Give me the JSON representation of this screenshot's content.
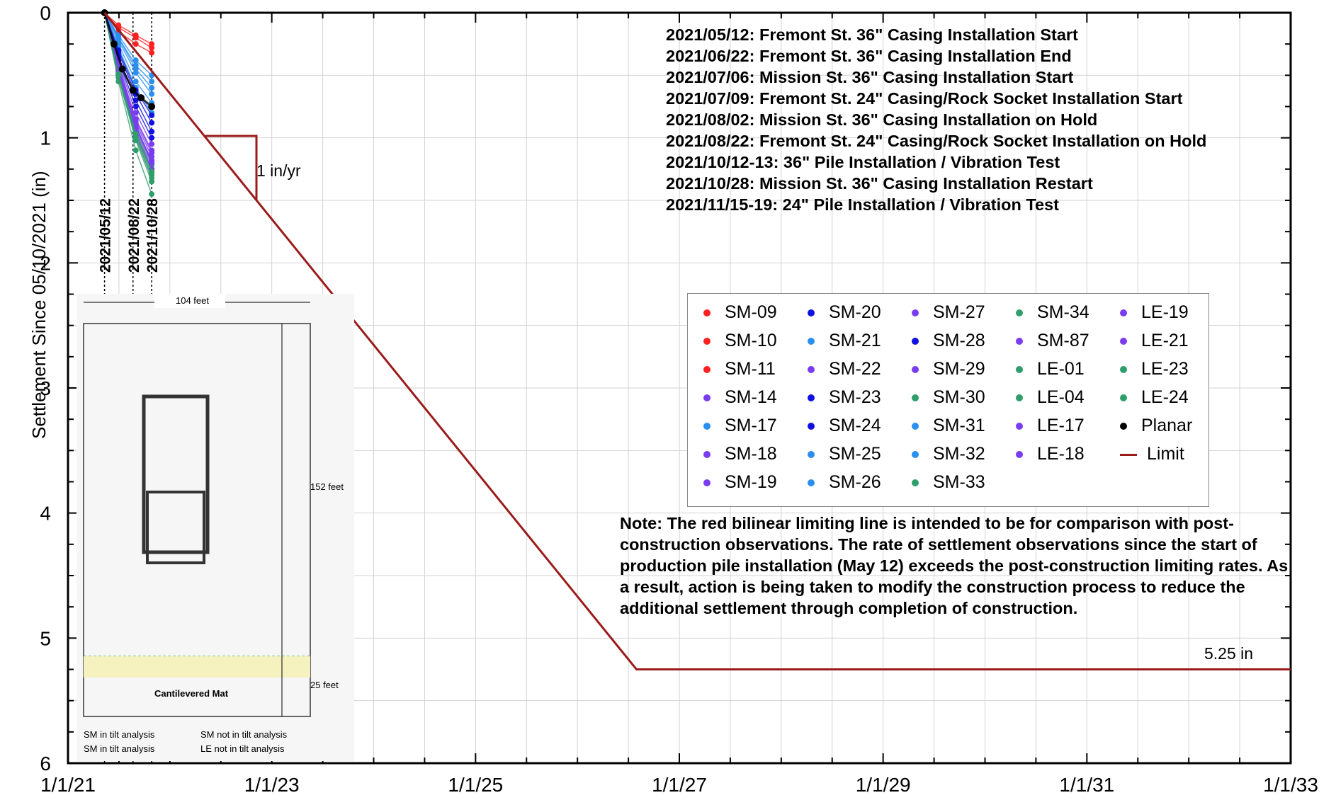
{
  "chart_data": {
    "type": "scatter",
    "ylabel": "Settlement Since 05/10/2021 (in)",
    "xlabel": "",
    "x_ticks": [
      "1/1/21",
      "1/1/23",
      "1/1/25",
      "1/1/27",
      "1/1/29",
      "1/1/31",
      "1/1/33"
    ],
    "y_ticks": [
      "0",
      "1",
      "2",
      "3",
      "4",
      "5",
      "6"
    ],
    "ylim": [
      6,
      0
    ],
    "xlim": [
      "1/1/21",
      "1/1/33"
    ],
    "grid": true,
    "vertical_markers": [
      "2021/05/12",
      "2021/08/22",
      "2021/10/28"
    ],
    "series": [
      {
        "name": "SM-09",
        "color": "#ff2020",
        "marker": "dot",
        "x": [
          "2021-05-12",
          "2021-07-01",
          "2021-09-01",
          "2021-10-28"
        ],
        "values": [
          0.0,
          0.15,
          0.25,
          0.32
        ]
      },
      {
        "name": "SM-10",
        "color": "#ff2020",
        "marker": "dot",
        "x": [
          "2021-05-12",
          "2021-07-01",
          "2021-09-01",
          "2021-10-28"
        ],
        "values": [
          0.0,
          0.12,
          0.2,
          0.28
        ]
      },
      {
        "name": "SM-11",
        "color": "#ff2020",
        "marker": "dot",
        "x": [
          "2021-05-12",
          "2021-07-01",
          "2021-09-01",
          "2021-10-28"
        ],
        "values": [
          0.0,
          0.1,
          0.18,
          0.25
        ]
      },
      {
        "name": "SM-14",
        "color": "#7a3cf0",
        "marker": "dot",
        "x": [
          "2021-05-12",
          "2021-07-01",
          "2021-09-01",
          "2021-10-28"
        ],
        "values": [
          0.0,
          0.45,
          0.9,
          1.2
        ]
      },
      {
        "name": "SM-17",
        "color": "#2a8ff0",
        "marker": "dot",
        "x": [
          "2021-05-12",
          "2021-07-01",
          "2021-09-01",
          "2021-10-28"
        ],
        "values": [
          0.0,
          0.2,
          0.45,
          0.6
        ]
      },
      {
        "name": "SM-18",
        "color": "#7a3cf0",
        "marker": "dot",
        "x": [
          "2021-05-12",
          "2021-07-01",
          "2021-09-01",
          "2021-10-28"
        ],
        "values": [
          0.0,
          0.5,
          0.95,
          1.25
        ]
      },
      {
        "name": "SM-19",
        "color": "#7a3cf0",
        "marker": "dot",
        "x": [
          "2021-05-12",
          "2021-07-01",
          "2021-09-01",
          "2021-10-28"
        ],
        "values": [
          0.0,
          0.48,
          0.92,
          1.18
        ]
      },
      {
        "name": "SM-20",
        "color": "#1010e0",
        "marker": "dot",
        "x": [
          "2021-05-12",
          "2021-07-01",
          "2021-09-01",
          "2021-10-28"
        ],
        "values": [
          0.0,
          0.35,
          0.7,
          0.95
        ]
      },
      {
        "name": "SM-21",
        "color": "#2a8ff0",
        "marker": "dot",
        "x": [
          "2021-05-12",
          "2021-07-01",
          "2021-09-01",
          "2021-10-28"
        ],
        "values": [
          0.0,
          0.28,
          0.6,
          0.8
        ]
      },
      {
        "name": "SM-22",
        "color": "#7a3cf0",
        "marker": "dot",
        "x": [
          "2021-05-12",
          "2021-07-01",
          "2021-09-01",
          "2021-10-28"
        ],
        "values": [
          0.0,
          0.42,
          0.85,
          1.1
        ]
      },
      {
        "name": "SM-23",
        "color": "#1010e0",
        "marker": "dot",
        "x": [
          "2021-05-12",
          "2021-07-01",
          "2021-09-01",
          "2021-10-28"
        ],
        "values": [
          0.0,
          0.38,
          0.75,
          1.0
        ]
      },
      {
        "name": "SM-24",
        "color": "#1010e0",
        "marker": "dot",
        "x": [
          "2021-05-12",
          "2021-07-01",
          "2021-09-01",
          "2021-10-28"
        ],
        "values": [
          0.0,
          0.32,
          0.65,
          0.88
        ]
      },
      {
        "name": "SM-25",
        "color": "#2a8ff0",
        "marker": "dot",
        "x": [
          "2021-05-12",
          "2021-07-01",
          "2021-09-01",
          "2021-10-28"
        ],
        "values": [
          0.0,
          0.25,
          0.55,
          0.72
        ]
      },
      {
        "name": "SM-26",
        "color": "#2a8ff0",
        "marker": "dot",
        "x": [
          "2021-05-12",
          "2021-07-01",
          "2021-09-01",
          "2021-10-28"
        ],
        "values": [
          0.0,
          0.22,
          0.48,
          0.65
        ]
      },
      {
        "name": "SM-27",
        "color": "#7a3cf0",
        "marker": "dot",
        "x": [
          "2021-05-12",
          "2021-07-01",
          "2021-09-01",
          "2021-10-28"
        ],
        "values": [
          0.0,
          0.4,
          0.8,
          1.05
        ]
      },
      {
        "name": "SM-28",
        "color": "#1010e0",
        "marker": "dot",
        "x": [
          "2021-05-12",
          "2021-07-01",
          "2021-09-01",
          "2021-10-28"
        ],
        "values": [
          0.0,
          0.3,
          0.62,
          0.82
        ]
      },
      {
        "name": "SM-29",
        "color": "#7a3cf0",
        "marker": "dot",
        "x": [
          "2021-05-12",
          "2021-07-01",
          "2021-09-01",
          "2021-10-28"
        ],
        "values": [
          0.0,
          0.44,
          0.88,
          1.15
        ]
      },
      {
        "name": "SM-30",
        "color": "#2e9e6a",
        "marker": "dot",
        "x": [
          "2021-05-12",
          "2021-07-01",
          "2021-09-01",
          "2021-10-28"
        ],
        "values": [
          0.0,
          0.5,
          1.0,
          1.3
        ]
      },
      {
        "name": "SM-31",
        "color": "#2a8ff0",
        "marker": "dot",
        "x": [
          "2021-05-12",
          "2021-07-01",
          "2021-09-01",
          "2021-10-28"
        ],
        "values": [
          0.0,
          0.2,
          0.42,
          0.55
        ]
      },
      {
        "name": "SM-32",
        "color": "#2a8ff0",
        "marker": "dot",
        "x": [
          "2021-05-12",
          "2021-07-01",
          "2021-09-01",
          "2021-10-28"
        ],
        "values": [
          0.0,
          0.18,
          0.38,
          0.5
        ]
      },
      {
        "name": "SM-33",
        "color": "#2e9e6a",
        "marker": "dot",
        "x": [
          "2021-05-12",
          "2021-07-01",
          "2021-09-01",
          "2021-10-28"
        ],
        "values": [
          0.0,
          0.55,
          1.1,
          1.45
        ]
      },
      {
        "name": "SM-34",
        "color": "#2e9e6a",
        "marker": "dot",
        "x": [
          "2021-05-12",
          "2021-07-01",
          "2021-09-01",
          "2021-10-28"
        ],
        "values": [
          0.0,
          0.52,
          1.02,
          1.35
        ]
      },
      {
        "name": "SM-87",
        "color": "#7a3cf0",
        "marker": "dot",
        "x": [
          "2021-05-12",
          "2021-07-01",
          "2021-09-01",
          "2021-10-28"
        ],
        "values": [
          0.0,
          0.46,
          0.9,
          1.2
        ]
      },
      {
        "name": "LE-01",
        "color": "#2e9e6a",
        "marker": "dot",
        "x": [
          "2021-05-12",
          "2021-07-01",
          "2021-09-01",
          "2021-10-28"
        ],
        "values": [
          0.0,
          0.5,
          0.98,
          1.28
        ]
      },
      {
        "name": "LE-04",
        "color": "#2e9e6a",
        "marker": "dot",
        "x": [
          "2021-05-12",
          "2021-07-01",
          "2021-09-01",
          "2021-10-28"
        ],
        "values": [
          0.0,
          0.48,
          0.95,
          1.22
        ]
      },
      {
        "name": "LE-17",
        "color": "#7a3cf0",
        "marker": "dot",
        "x": [
          "2021-05-12",
          "2021-07-01",
          "2021-09-01",
          "2021-10-28"
        ],
        "values": [
          0.0,
          0.5,
          0.98,
          1.25
        ]
      },
      {
        "name": "LE-18",
        "color": "#7a3cf0",
        "marker": "dot",
        "x": [
          "2021-05-12",
          "2021-07-01",
          "2021-09-01",
          "2021-10-28"
        ],
        "values": [
          0.0,
          0.47,
          0.93,
          1.2
        ]
      },
      {
        "name": "LE-19",
        "color": "#7a3cf0",
        "marker": "dot",
        "x": [
          "2021-05-12",
          "2021-07-01",
          "2021-09-01",
          "2021-10-28"
        ],
        "values": [
          0.0,
          0.46,
          0.91,
          1.18
        ]
      },
      {
        "name": "LE-21",
        "color": "#7a3cf0",
        "marker": "dot",
        "x": [
          "2021-05-12",
          "2021-07-01",
          "2021-09-01",
          "2021-10-28"
        ],
        "values": [
          0.0,
          0.43,
          0.86,
          1.12
        ]
      },
      {
        "name": "LE-23",
        "color": "#2e9e6a",
        "marker": "dot",
        "x": [
          "2021-05-12",
          "2021-07-01",
          "2021-09-01",
          "2021-10-28"
        ],
        "values": [
          0.0,
          0.5,
          1.0,
          1.32
        ]
      },
      {
        "name": "LE-24",
        "color": "#2e9e6a",
        "marker": "dot",
        "x": [
          "2021-05-12",
          "2021-07-01",
          "2021-09-01",
          "2021-10-28"
        ],
        "values": [
          0.0,
          0.49,
          0.97,
          1.27
        ]
      },
      {
        "name": "Planar",
        "color": "#000000",
        "marker": "dot",
        "x": [
          "2021-05-12",
          "2021-06-15",
          "2021-07-15",
          "2021-08-22",
          "2021-09-20",
          "2021-10-28"
        ],
        "values": [
          0.0,
          0.25,
          0.45,
          0.62,
          0.68,
          0.75
        ]
      },
      {
        "name": "Limit",
        "color": "#9b1b1b",
        "marker": "line",
        "x": [
          "2021-05-12",
          "2026-08-01",
          "2033-01-01"
        ],
        "values": [
          0.0,
          5.25,
          5.25
        ]
      }
    ],
    "limit_label": "5.25 in",
    "rate_label": "1 in/yr",
    "annotations": [
      "2021/05/12: Fremont St. 36\" Casing Installation Start",
      "2021/06/22: Fremont St. 36\" Casing Installation End",
      "2021/07/06: Mission St.  36\" Casing Installation Start",
      "2021/07/09: Fremont St. 24\" Casing/Rock Socket Installation Start",
      "2021/08/02: Mission St.  36\" Casing Installation on Hold",
      "2021/08/22: Fremont St. 24\" Casing/Rock Socket Installation on Hold",
      "2021/10/12-13: 36\" Pile Installation / Vibration Test",
      "2021/10/28: Mission St.  36\" Casing Installation Restart",
      "2021/11/15-19: 24\" Pile Installation / Vibration Test"
    ],
    "note": "Note: The red bilinear limiting line is intended to be for comparison with post-construction observations. The rate of settlement observations since the start of production pile installation (May 12) exceeds the post-construction limiting rates. As a result, action is being taken to modify the construction process to reduce the additional settlement through completion of construction."
  },
  "inset": {
    "width_label": "104 feet",
    "height_label": "152 feet",
    "mat_label": "25 feet",
    "mat_name": "Cantilevered Mat",
    "key": [
      "SM in tilt analysis",
      "SM not in tilt analysis",
      "SM in tilt analysis",
      "LE not in tilt analysis"
    ]
  }
}
